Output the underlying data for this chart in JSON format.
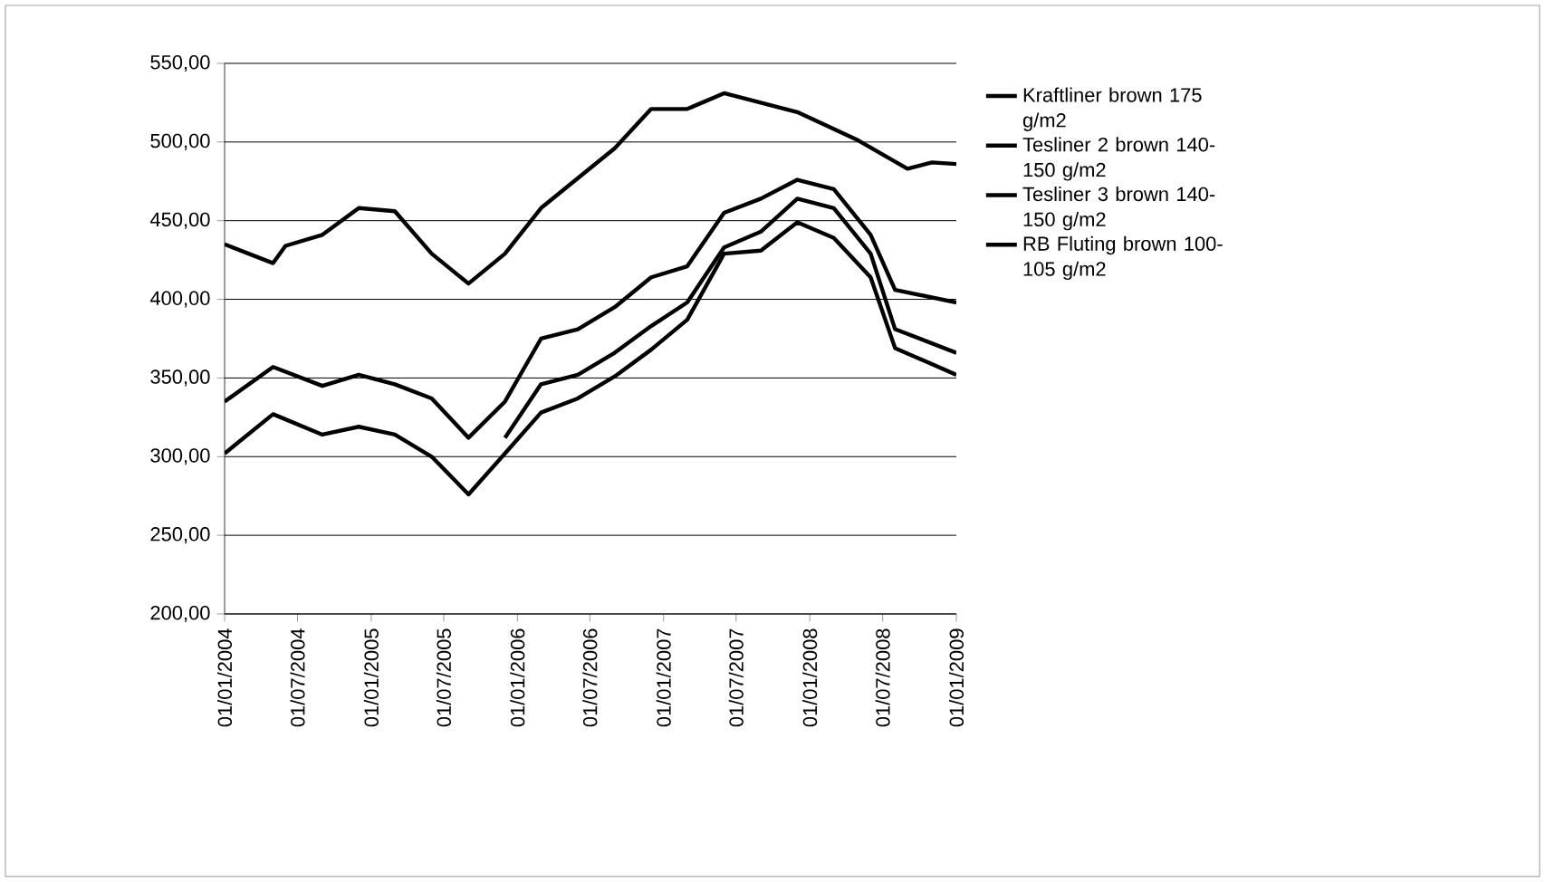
{
  "chart_data": {
    "type": "line",
    "xlim": [
      "2004-01-01",
      "2009-01-01"
    ],
    "xticks": [
      {
        "value": "2004-01-01",
        "label": "01/01/2004"
      },
      {
        "value": "2004-07-01",
        "label": "01/07/2004"
      },
      {
        "value": "2005-01-01",
        "label": "01/01/2005"
      },
      {
        "value": "2005-07-01",
        "label": "01/07/2005"
      },
      {
        "value": "2006-01-01",
        "label": "01/01/2006"
      },
      {
        "value": "2006-07-01",
        "label": "01/07/2006"
      },
      {
        "value": "2007-01-01",
        "label": "01/01/2007"
      },
      {
        "value": "2007-07-01",
        "label": "01/07/2007"
      },
      {
        "value": "2008-01-01",
        "label": "01/01/2008"
      },
      {
        "value": "2008-07-01",
        "label": "01/07/2008"
      },
      {
        "value": "2009-01-01",
        "label": "01/01/2009"
      }
    ],
    "ylim": [
      200,
      550
    ],
    "yticks": [
      {
        "value": 200,
        "label": "200,00"
      },
      {
        "value": 250,
        "label": "250,00"
      },
      {
        "value": 300,
        "label": "300,00"
      },
      {
        "value": 350,
        "label": "350,00"
      },
      {
        "value": 400,
        "label": "400,00"
      },
      {
        "value": 450,
        "label": "450,00"
      },
      {
        "value": 500,
        "label": "500,00"
      },
      {
        "value": 550,
        "label": "550,00"
      }
    ],
    "grid": "y",
    "legend": "right",
    "series": [
      {
        "name": "Kraftliner brown 175 g/m2",
        "color": "#000000",
        "x": [
          "2004-01",
          "2004-05",
          "2004-06",
          "2004-09",
          "2004-12",
          "2005-03",
          "2005-06",
          "2005-09",
          "2005-12",
          "2006-03",
          "2006-09",
          "2006-12",
          "2007-03",
          "2007-06",
          "2007-12",
          "2008-05",
          "2008-09",
          "2008-11",
          "2009-01"
        ],
        "values": [
          435,
          423,
          434,
          441,
          458,
          456,
          429,
          410,
          429,
          458,
          496,
          521,
          521,
          531,
          519,
          501,
          483,
          487,
          486
        ]
      },
      {
        "name": "Tesliner 2 brown 140-150 g/m2",
        "color": "#000000",
        "x": [
          "2004-01",
          "2004-05",
          "2004-09",
          "2004-12",
          "2005-03",
          "2005-06",
          "2005-09",
          "2005-12",
          "2006-03",
          "2006-06",
          "2006-09",
          "2006-12",
          "2007-03",
          "2007-06",
          "2007-09",
          "2007-12",
          "2008-03",
          "2008-06",
          "2008-08",
          "2009-01"
        ],
        "values": [
          335,
          357,
          345,
          352,
          346,
          337,
          312,
          335,
          375,
          381,
          395,
          414,
          421,
          455,
          464,
          476,
          470,
          441,
          406,
          398
        ]
      },
      {
        "name": "Tesliner 3 brown 140-150 g/m2",
        "color": "#000000",
        "x": [
          "2005-12",
          "2006-03",
          "2006-06",
          "2006-09",
          "2006-12",
          "2007-03",
          "2007-06",
          "2007-09",
          "2007-12",
          "2008-03",
          "2008-06",
          "2008-08",
          "2009-01"
        ],
        "values": [
          312,
          346,
          352,
          366,
          383,
          398,
          433,
          443,
          464,
          458,
          429,
          381,
          366
        ]
      },
      {
        "name": "RB Fluting  brown 100-105 g/m2",
        "color": "#000000",
        "x": [
          "2004-01",
          "2004-05",
          "2004-09",
          "2004-12",
          "2005-03",
          "2005-06",
          "2005-09",
          "2005-12",
          "2006-03",
          "2006-06",
          "2006-09",
          "2006-12",
          "2007-03",
          "2007-06",
          "2007-09",
          "2007-12",
          "2008-03",
          "2008-06",
          "2008-08",
          "2009-01"
        ],
        "values": [
          302,
          327,
          314,
          319,
          314,
          300,
          276,
          302,
          328,
          337,
          351,
          368,
          387,
          429,
          431,
          449,
          439,
          414,
          369,
          352
        ]
      }
    ]
  }
}
